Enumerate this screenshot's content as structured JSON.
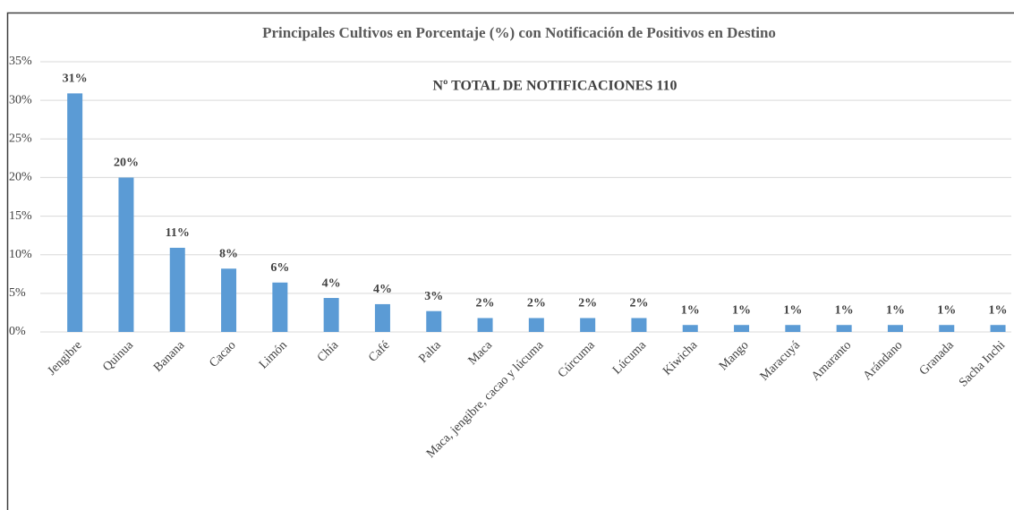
{
  "chart_data": {
    "type": "bar",
    "title": "Principales Cultivos en Porcentaje (%) con Notificación de Positivos en Destino",
    "annotation": "Nº TOTAL DE NOTIFICACIONES 110",
    "categories": [
      "Jengibre",
      "Quinua",
      "Banana",
      "Cacao",
      "Limón",
      "Chía",
      "Café",
      "Palta",
      "Maca",
      "Maca, jengibre, cacao y lúcuma",
      "Cúrcuma",
      "Lúcuma",
      "Kiwicha",
      "Mango",
      "Maracuyá",
      "Amaranto",
      "Arándano",
      "Granada",
      "Sacha Inchi"
    ],
    "values": [
      30.9,
      20.0,
      10.9,
      8.2,
      6.4,
      4.4,
      3.6,
      2.7,
      1.8,
      1.8,
      1.8,
      1.8,
      0.9,
      0.9,
      0.9,
      0.9,
      0.9,
      0.9,
      0.9
    ],
    "value_labels": [
      "31%",
      "20%",
      "11%",
      "8%",
      "6%",
      "4%",
      "4%",
      "3%",
      "2%",
      "2%",
      "2%",
      "2%",
      "1%",
      "1%",
      "1%",
      "1%",
      "1%",
      "1%",
      "1%"
    ],
    "color": "#5b9bd5",
    "ylim": [
      0,
      35
    ],
    "yticks": [
      {
        "value": 0,
        "label": "0%"
      },
      {
        "value": 5,
        "label": "5%"
      },
      {
        "value": 10,
        "label": "10%"
      },
      {
        "value": 15,
        "label": "15%"
      },
      {
        "value": 20,
        "label": "20%"
      },
      {
        "value": 25,
        "label": "25%"
      },
      {
        "value": 30,
        "label": "30%"
      },
      {
        "value": 35,
        "label": "35%"
      }
    ],
    "grid": true
  }
}
